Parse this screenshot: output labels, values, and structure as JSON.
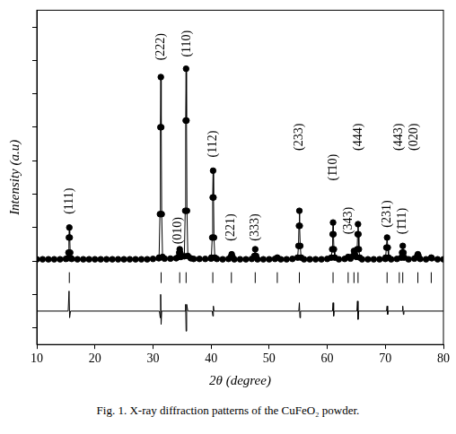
{
  "chart_data": {
    "type": "line",
    "caption": "Fig. 1. X-ray diffraction patterns of the CuFeO₂ powder.",
    "x_label": "2θ (degree)",
    "y_label": "Intensity (a.u)",
    "xlim": [
      10,
      80
    ],
    "xticks": [
      10,
      20,
      30,
      40,
      50,
      60,
      70,
      80
    ],
    "ylim": [
      -25,
      75
    ],
    "yticks": [
      -20,
      -10,
      0,
      10,
      20,
      30,
      40,
      50,
      60,
      70
    ],
    "tick_labels": "x",
    "grid": false,
    "series": [
      {
        "type": "line",
        "marker": "circle",
        "line_style": "solid",
        "color": "#000000",
        "x": [
          10,
          11,
          12,
          13,
          14,
          15,
          15.3,
          15.45,
          15.53,
          15.6,
          15.67,
          15.75,
          15.9,
          16,
          17,
          18,
          19,
          20,
          21,
          22,
          23,
          24,
          25,
          26,
          27,
          28,
          29,
          30,
          31,
          31.05,
          31.2,
          31.28,
          31.35,
          31.42,
          31.5,
          31.65,
          32,
          33,
          34,
          34.4,
          34.52,
          34.6,
          34.68,
          34.8,
          35.4,
          35.55,
          35.63,
          35.7,
          35.77,
          35.85,
          36.0,
          36.5,
          37,
          38,
          39,
          40,
          40.05,
          40.2,
          40.28,
          40.35,
          40.42,
          40.5,
          40.65,
          41,
          42,
          43,
          43.4,
          43.55,
          43.7,
          44,
          45,
          46,
          47,
          47.45,
          47.6,
          47.75,
          48,
          49,
          50,
          51,
          51.4,
          52,
          53,
          54,
          54.9,
          55.05,
          55.13,
          55.2,
          55.27,
          55.35,
          55.5,
          56,
          57,
          58,
          59,
          60,
          60.7,
          60.85,
          60.93,
          61.0,
          61.07,
          61.15,
          61.3,
          62,
          63,
          63.6,
          64,
          64.45,
          64.6,
          64.75,
          65.0,
          65.15,
          65.23,
          65.3,
          65.37,
          65.45,
          65.6,
          66,
          67,
          68,
          69,
          70,
          70.05,
          70.18,
          70.3,
          70.42,
          70.55,
          71,
          72,
          72.75,
          72.88,
          73.0,
          73.12,
          73.25,
          74,
          75,
          75.5,
          75.6,
          75.7,
          76,
          77,
          77.9,
          78,
          79,
          80
        ],
        "values": [
          0.5,
          0.5,
          0.5,
          0.5,
          0.5,
          0.6,
          0.8,
          2.5,
          7,
          10,
          7,
          2.5,
          0.8,
          0.6,
          0.5,
          0.5,
          0.5,
          0.5,
          0.5,
          0.5,
          0.5,
          0.5,
          0.5,
          0.5,
          0.5,
          0.5,
          0.5,
          0.6,
          0.8,
          1.0,
          14,
          40,
          55,
          40,
          14,
          1.2,
          0.7,
          0.7,
          0.8,
          1.2,
          2.5,
          3.5,
          2.5,
          1.2,
          1.4,
          15,
          42,
          57.5,
          42,
          15,
          1.5,
          0.8,
          0.6,
          0.6,
          0.6,
          0.7,
          1.0,
          7,
          19,
          27,
          19,
          7,
          1.0,
          0.6,
          0.5,
          0.6,
          1.2,
          2,
          1.2,
          0.5,
          0.5,
          0.5,
          0.6,
          1.5,
          3.5,
          1.5,
          0.5,
          0.5,
          0.5,
          0.6,
          1.0,
          0.5,
          0.5,
          0.6,
          1.0,
          4.5,
          10.5,
          15,
          10.5,
          4.5,
          1.0,
          0.5,
          0.5,
          0.5,
          0.5,
          0.6,
          1.0,
          3.5,
          8,
          11.5,
          8,
          3.5,
          1.0,
          0.5,
          0.6,
          1.2,
          0.7,
          1.5,
          3,
          2,
          1.2,
          3.5,
          8,
          11,
          8,
          3.5,
          1.0,
          0.5,
          0.5,
          0.5,
          0.5,
          0.6,
          1.0,
          4,
          7,
          4,
          1.0,
          0.5,
          0.6,
          1.0,
          2.5,
          4.5,
          2.5,
          1.0,
          0.5,
          0.7,
          1.5,
          2,
          1.5,
          0.6,
          0.5,
          1.0,
          0.8,
          0.5,
          0.5
        ]
      },
      {
        "type": "scatter",
        "marker": "line",
        "color": "#000000",
        "x": [
          15.6,
          31.4,
          34.6,
          35.7,
          40.3,
          43.5,
          47.6,
          51.4,
          55.2,
          61.0,
          63.6,
          64.6,
          65.3,
          70.3,
          72.4,
          73.0,
          75.6,
          77.9
        ],
        "values": [
          -5,
          -5,
          -5,
          -5,
          -5,
          -5,
          -5,
          -5,
          -5,
          -5,
          -5,
          -5,
          -5,
          -5,
          -5,
          -5,
          -5,
          -5
        ]
      },
      {
        "type": "line",
        "marker": "none",
        "line_style": "solid",
        "color": "#000000",
        "x": [
          10,
          15.4,
          15.55,
          15.65,
          15.8,
          31.1,
          31.25,
          31.32,
          31.4,
          31.5,
          35.5,
          35.62,
          35.7,
          35.8,
          36.0,
          40.2,
          40.3,
          40.4,
          40.5,
          55.1,
          55.2,
          55.3,
          55.4,
          60.9,
          61.0,
          61.1,
          61.2,
          65.1,
          65.2,
          65.3,
          65.4,
          70.2,
          70.3,
          70.4,
          70.5,
          72.9,
          73.0,
          73.1,
          73.2,
          80
        ],
        "values": [
          -15,
          -15,
          -9,
          -17,
          -15,
          -15,
          -17,
          -10,
          -19,
          -15,
          -15,
          -13,
          -21,
          -13,
          -15,
          -15,
          -16.5,
          -13.5,
          -15,
          -15,
          -12.5,
          -17,
          -15,
          -15,
          -12.5,
          -16.5,
          -15,
          -15,
          -12,
          -17.5,
          -15,
          -15,
          -13.5,
          -16,
          -15,
          -15,
          -13.5,
          -16,
          -15,
          -15
        ]
      }
    ],
    "annotations": [
      {
        "text": "(111)",
        "x": 15.6,
        "y": 14
      },
      {
        "text": "(222)",
        "x": 31.3,
        "y": 60
      },
      {
        "text": "(010)",
        "x": 34.3,
        "y": 5
      },
      {
        "text": "(110)",
        "x": 35.8,
        "y": 61
      },
      {
        "text": "(112)",
        "x": 40.3,
        "y": 31
      },
      {
        "text": "(221)",
        "x": 43.5,
        "y": 6
      },
      {
        "text": "(333)",
        "x": 47.6,
        "y": 6
      },
      {
        "text": "(233)",
        "x": 55.2,
        "y": 33
      },
      {
        "text": "(1̄10)",
        "x": 61.0,
        "y": 24
      },
      {
        "text": "(343)",
        "x": 63.6,
        "y": 8
      },
      {
        "text": "(444)",
        "x": 65.3,
        "y": 33
      },
      {
        "text": "(231)",
        "x": 70.3,
        "y": 10
      },
      {
        "text": "(443)",
        "x": 72.4,
        "y": 33
      },
      {
        "text": "(1̄11)",
        "x": 73.0,
        "y": 8
      },
      {
        "text": "(020)",
        "x": 75.0,
        "y": 33
      }
    ]
  }
}
